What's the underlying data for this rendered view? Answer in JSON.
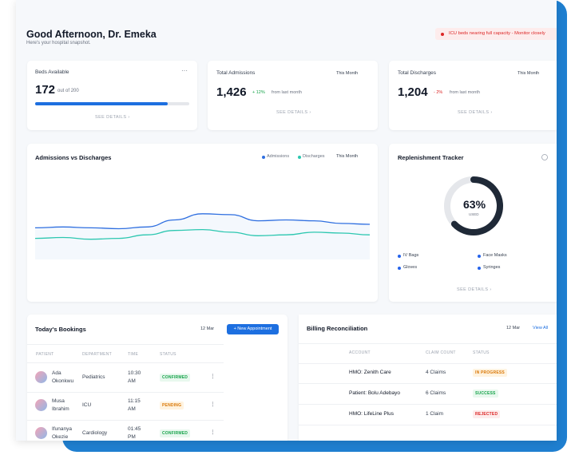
{
  "header": {
    "greeting": "Good Afternoon, Dr. Emeka",
    "subtitle": "Here's your hospital snapshot.",
    "alert": "ICU beds nearing full capacity - Monitor closely"
  },
  "stats": [
    {
      "title": "Beds Available",
      "value": 172,
      "of_text": "out of",
      "total": 200,
      "link": "SEE DETAILS ›"
    },
    {
      "title": "Total Admissions",
      "value": "1,426",
      "filter": "This Month",
      "change": "+ 12%",
      "change_note": "from last month",
      "link": "SEE DETAILS ›"
    },
    {
      "title": "Total Discharges",
      "value": "1,204",
      "filter": "This Month",
      "change": "- 2%",
      "change_note": "from last month",
      "link": "SEE DETAILS ›"
    }
  ],
  "chart_data": {
    "type": "line",
    "title": "Admissions vs Discharges",
    "filter": "This Month",
    "ylim": [
      0,
      100
    ],
    "series": [
      {
        "name": "Admissions",
        "color": "#2f6fe0",
        "values": [
          36,
          37,
          36,
          35,
          37,
          45,
          52,
          51,
          44,
          45,
          44,
          41,
          40
        ]
      },
      {
        "name": "Discharges",
        "color": "#2cc7b0",
        "values": [
          24,
          25,
          23,
          24,
          28,
          33,
          34,
          31,
          27,
          28,
          31,
          30,
          28
        ]
      }
    ]
  },
  "replenishment": {
    "title": "Replenishment Tracker",
    "used": {
      "value": 63,
      "label": "63%"
    },
    "used_caption": "USED",
    "items": [
      "IV Bags",
      "Face Masks",
      "Gloves",
      "Syringes"
    ],
    "link": "SEE DETAILS ›"
  },
  "bookings": {
    "title": "Today's Bookings",
    "date": "12 Mar",
    "button": "+ New Appointment",
    "columns": [
      "PATIENT",
      "DEPARTMENT",
      "TIME",
      "STATUS"
    ],
    "rows": [
      [
        "Ada Okonkwu",
        "Pediatrics",
        "10:30 AM",
        "CONFIRMED"
      ],
      [
        "Musa Ibrahim",
        "ICU",
        "11:15 AM",
        "PENDING"
      ],
      [
        "Ifunanya Okezie",
        "Cardiology",
        "01:45 PM",
        "CONFIRMED"
      ]
    ]
  },
  "billing": {
    "title": "Billing Reconciliation",
    "date": "12 Mar",
    "link": "View All",
    "columns": [
      "ACCOUNT",
      "CLAIM COUNT",
      "STATUS"
    ],
    "rows": [
      [
        "HMO: Zenith Care",
        "4 Claims",
        "IN PROGRESS"
      ],
      [
        "Patient: Bolu Adebayo",
        "6 Claims",
        "SUCCESS"
      ],
      [
        "HMO: LifeLine Plus",
        "1 Claim",
        "REJECTED"
      ]
    ]
  }
}
